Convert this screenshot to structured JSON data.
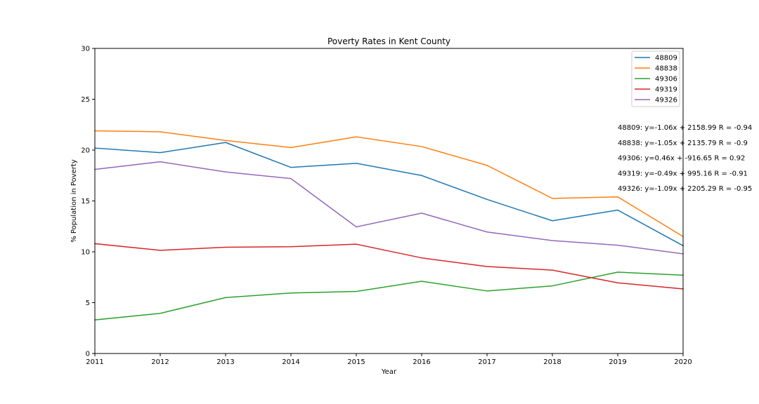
{
  "chart_data": {
    "type": "line",
    "title": "Poverty Rates in Kent County",
    "xlabel": "Year",
    "ylabel": "% Population in Poverty",
    "xlim": [
      2011,
      2020
    ],
    "ylim": [
      0,
      30
    ],
    "x": [
      2011,
      2012,
      2013,
      2014,
      2015,
      2016,
      2017,
      2018,
      2019,
      2020
    ],
    "x_ticks": [
      "2011",
      "2012",
      "2013",
      "2014",
      "2015",
      "2016",
      "2017",
      "2018",
      "2019",
      "2020"
    ],
    "y_ticks": [
      "0",
      "5",
      "10",
      "15",
      "20",
      "25",
      "30"
    ],
    "grid": false,
    "legend_position": "top-right",
    "series": [
      {
        "name": "48809",
        "color": "#1f77b4",
        "values": [
          20.2,
          19.75,
          20.75,
          18.3,
          18.7,
          17.5,
          15.15,
          13.05,
          14.1,
          10.6
        ]
      },
      {
        "name": "48838",
        "color": "#ff7f0e",
        "values": [
          21.9,
          21.8,
          20.95,
          20.25,
          21.3,
          20.35,
          18.5,
          15.25,
          15.4,
          11.5
        ]
      },
      {
        "name": "49306",
        "color": "#2ca02c",
        "values": [
          3.3,
          3.95,
          5.5,
          5.95,
          6.1,
          7.1,
          6.15,
          6.65,
          8.0,
          7.7
        ]
      },
      {
        "name": "49319",
        "color": "#d62728",
        "values": [
          10.8,
          10.15,
          10.45,
          10.5,
          10.75,
          9.4,
          8.55,
          8.2,
          6.95,
          6.35
        ]
      },
      {
        "name": "49326",
        "color": "#9467bd",
        "values": [
          18.1,
          18.85,
          17.85,
          17.2,
          12.45,
          13.8,
          11.95,
          11.1,
          10.65,
          9.8
        ]
      }
    ],
    "annotations": [
      "48809: y=-1.06x + 2158.99 R = -0.94",
      "48838: y=-1.05x + 2135.79 R = -0.9",
      "49306: y=0.46x + -916.65 R = 0.92",
      "49319: y=-0.49x + 995.16 R = -0.91",
      "49326: y=-1.09x + 2205.29 R = -0.95"
    ]
  }
}
